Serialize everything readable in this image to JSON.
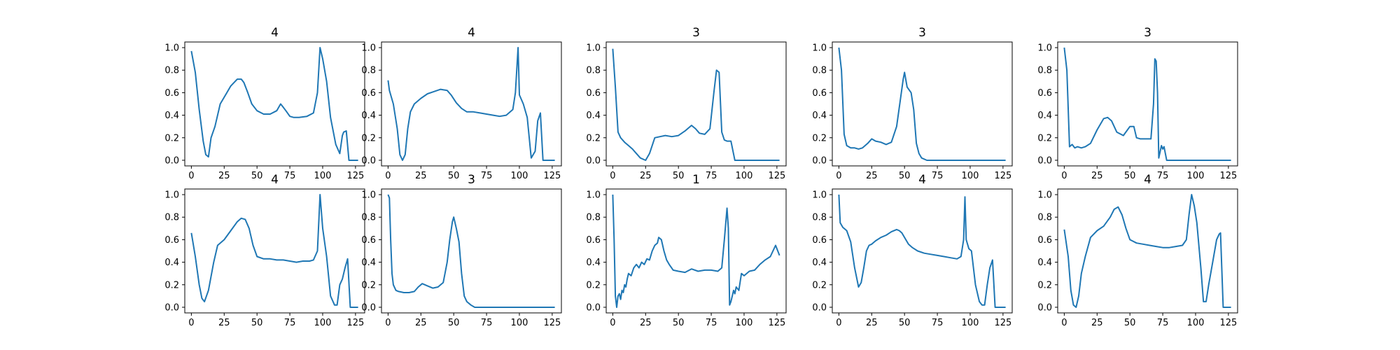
{
  "chart_data": [
    {
      "type": "line",
      "title": "4",
      "xlim": [
        -5,
        132
      ],
      "ylim": [
        -0.05,
        1.05
      ],
      "xticks": [
        "0",
        "25",
        "50",
        "75",
        "100",
        "125"
      ],
      "yticks": [
        "0.0",
        "0.2",
        "0.4",
        "0.6",
        "0.8",
        "1.0"
      ],
      "series": [
        {
          "color": "#1f77b4",
          "x": [
            0,
            3,
            6,
            9,
            11,
            13,
            15,
            18,
            22,
            26,
            30,
            35,
            38,
            40,
            43,
            46,
            50,
            55,
            60,
            65,
            68,
            70,
            72,
            75,
            78,
            82,
            88,
            93,
            96,
            98,
            100,
            103,
            106,
            110,
            113,
            115,
            116,
            118,
            120,
            122,
            125,
            127
          ],
          "y": [
            0.97,
            0.78,
            0.45,
            0.17,
            0.05,
            0.03,
            0.2,
            0.3,
            0.5,
            0.58,
            0.66,
            0.72,
            0.72,
            0.69,
            0.6,
            0.5,
            0.44,
            0.41,
            0.41,
            0.44,
            0.5,
            0.47,
            0.44,
            0.39,
            0.38,
            0.38,
            0.39,
            0.42,
            0.6,
            1.0,
            0.9,
            0.7,
            0.38,
            0.14,
            0.06,
            0.22,
            0.25,
            0.26,
            0.0,
            0.0,
            0.0,
            0.0
          ]
        }
      ]
    },
    {
      "type": "line",
      "title": "4",
      "xlim": [
        -5,
        132
      ],
      "ylim": [
        -0.05,
        1.05
      ],
      "xticks": [
        "0",
        "25",
        "50",
        "75",
        "100",
        "125"
      ],
      "yticks": [
        "0.0",
        "0.2",
        "0.4",
        "0.6",
        "0.8",
        "1.0"
      ],
      "series": [
        {
          "color": "#1f77b4",
          "x": [
            0,
            1,
            4,
            7,
            9,
            11,
            13,
            15,
            17,
            20,
            25,
            30,
            35,
            40,
            45,
            48,
            52,
            56,
            60,
            65,
            70,
            75,
            80,
            85,
            90,
            95,
            97,
            99,
            100,
            103,
            106,
            109,
            112,
            114,
            116,
            118,
            120,
            125,
            127
          ],
          "y": [
            0.71,
            0.62,
            0.5,
            0.28,
            0.05,
            0.0,
            0.05,
            0.28,
            0.43,
            0.5,
            0.55,
            0.59,
            0.61,
            0.63,
            0.62,
            0.58,
            0.51,
            0.46,
            0.43,
            0.43,
            0.42,
            0.41,
            0.4,
            0.39,
            0.4,
            0.45,
            0.6,
            1.0,
            0.58,
            0.5,
            0.38,
            0.02,
            0.08,
            0.35,
            0.42,
            0.0,
            0.0,
            0.0,
            0.0
          ]
        }
      ]
    },
    {
      "type": "line",
      "title": "3",
      "xlim": [
        -5,
        132
      ],
      "ylim": [
        -0.05,
        1.05
      ],
      "xticks": [
        "0",
        "25",
        "50",
        "75",
        "100",
        "125"
      ],
      "yticks": [
        "0.0",
        "0.2",
        "0.4",
        "0.6",
        "0.8",
        "1.0"
      ],
      "series": [
        {
          "color": "#1f77b4",
          "x": [
            0,
            2,
            4,
            6,
            9,
            12,
            15,
            18,
            21,
            25,
            28,
            32,
            36,
            40,
            45,
            50,
            55,
            60,
            63,
            66,
            70,
            74,
            77,
            79,
            81,
            83,
            85,
            87,
            90,
            93,
            96,
            100,
            105,
            110,
            115,
            120,
            125,
            127
          ],
          "y": [
            0.99,
            0.65,
            0.25,
            0.2,
            0.16,
            0.13,
            0.1,
            0.06,
            0.02,
            0.0,
            0.06,
            0.2,
            0.21,
            0.22,
            0.21,
            0.22,
            0.26,
            0.31,
            0.28,
            0.24,
            0.23,
            0.28,
            0.6,
            0.8,
            0.78,
            0.25,
            0.18,
            0.17,
            0.17,
            0.0,
            0.0,
            0.0,
            0.0,
            0.0,
            0.0,
            0.0,
            0.0,
            0.0
          ]
        }
      ]
    },
    {
      "type": "line",
      "title": "3",
      "xlim": [
        -5,
        132
      ],
      "ylim": [
        -0.05,
        1.05
      ],
      "xticks": [
        "0",
        "25",
        "50",
        "75",
        "100",
        "125"
      ],
      "yticks": [
        "0.0",
        "0.2",
        "0.4",
        "0.6",
        "0.8",
        "1.0"
      ],
      "series": [
        {
          "color": "#1f77b4",
          "x": [
            0,
            2,
            4,
            6,
            9,
            12,
            15,
            18,
            22,
            25,
            28,
            32,
            36,
            40,
            44,
            47,
            49,
            50,
            52,
            55,
            57,
            59,
            61,
            63,
            67,
            70,
            75,
            80,
            90,
            100,
            110,
            120,
            125,
            127
          ],
          "y": [
            1.0,
            0.8,
            0.23,
            0.13,
            0.11,
            0.11,
            0.1,
            0.11,
            0.15,
            0.19,
            0.17,
            0.16,
            0.14,
            0.16,
            0.3,
            0.55,
            0.72,
            0.78,
            0.65,
            0.6,
            0.45,
            0.15,
            0.06,
            0.02,
            0.0,
            0.0,
            0.0,
            0.0,
            0.0,
            0.0,
            0.0,
            0.0,
            0.0,
            0.0
          ]
        }
      ]
    },
    {
      "type": "line",
      "title": "3",
      "xlim": [
        -5,
        132
      ],
      "ylim": [
        -0.05,
        1.05
      ],
      "xticks": [
        "0",
        "25",
        "50",
        "75",
        "100",
        "125"
      ],
      "yticks": [
        "0.0",
        "0.2",
        "0.4",
        "0.6",
        "0.8",
        "1.0"
      ],
      "series": [
        {
          "color": "#1f77b4",
          "x": [
            0,
            2,
            4,
            6,
            8,
            10,
            13,
            16,
            20,
            25,
            30,
            33,
            36,
            40,
            45,
            50,
            53,
            55,
            58,
            62,
            66,
            68,
            69,
            70,
            71,
            72,
            74,
            75,
            76,
            78,
            80,
            85,
            90,
            100,
            110,
            120,
            125,
            127
          ],
          "y": [
            1.0,
            0.8,
            0.12,
            0.14,
            0.11,
            0.12,
            0.11,
            0.12,
            0.15,
            0.27,
            0.37,
            0.38,
            0.35,
            0.25,
            0.22,
            0.3,
            0.3,
            0.2,
            0.19,
            0.19,
            0.19,
            0.5,
            0.9,
            0.88,
            0.6,
            0.02,
            0.13,
            0.1,
            0.12,
            0.0,
            0.0,
            0.0,
            0.0,
            0.0,
            0.0,
            0.0,
            0.0,
            0.0
          ]
        }
      ]
    },
    {
      "type": "line",
      "title": "4",
      "xlim": [
        -5,
        132
      ],
      "ylim": [
        -0.05,
        1.05
      ],
      "xticks": [
        "0",
        "25",
        "50",
        "75",
        "100",
        "125"
      ],
      "yticks": [
        "0.0",
        "0.2",
        "0.4",
        "0.6",
        "0.8",
        "1.0"
      ],
      "series": [
        {
          "color": "#1f77b4",
          "x": [
            0,
            3,
            6,
            8,
            10,
            13,
            17,
            20,
            25,
            30,
            35,
            38,
            41,
            44,
            47,
            50,
            55,
            60,
            65,
            70,
            75,
            80,
            85,
            90,
            93,
            96,
            98,
            100,
            103,
            106,
            109,
            111,
            113,
            115,
            117,
            119,
            121,
            122,
            124,
            127
          ],
          "y": [
            0.66,
            0.45,
            0.2,
            0.08,
            0.05,
            0.15,
            0.4,
            0.55,
            0.6,
            0.68,
            0.76,
            0.79,
            0.78,
            0.7,
            0.55,
            0.45,
            0.43,
            0.43,
            0.42,
            0.42,
            0.41,
            0.4,
            0.41,
            0.41,
            0.42,
            0.5,
            1.0,
            0.7,
            0.45,
            0.1,
            0.02,
            0.02,
            0.2,
            0.25,
            0.35,
            0.43,
            0.0,
            0.0,
            0.0,
            0.0
          ]
        }
      ]
    },
    {
      "type": "line",
      "title": "3",
      "xlim": [
        -5,
        132
      ],
      "ylim": [
        -0.05,
        1.05
      ],
      "xticks": [
        "0",
        "25",
        "50",
        "75",
        "100",
        "125"
      ],
      "yticks": [
        "0.0",
        "0.2",
        "0.4",
        "0.6",
        "0.8",
        "1.0"
      ],
      "series": [
        {
          "color": "#1f77b4",
          "x": [
            0,
            1,
            2,
            3,
            4,
            6,
            8,
            12,
            16,
            20,
            23,
            26,
            30,
            34,
            38,
            42,
            45,
            47,
            49,
            50,
            52,
            54,
            56,
            58,
            60,
            63,
            66,
            70,
            75,
            80,
            90,
            100,
            110,
            120,
            125,
            127
          ],
          "y": [
            1.0,
            0.97,
            0.6,
            0.3,
            0.2,
            0.15,
            0.14,
            0.13,
            0.13,
            0.14,
            0.18,
            0.21,
            0.19,
            0.17,
            0.18,
            0.22,
            0.4,
            0.6,
            0.76,
            0.8,
            0.7,
            0.58,
            0.3,
            0.1,
            0.05,
            0.02,
            0.0,
            0.0,
            0.0,
            0.0,
            0.0,
            0.0,
            0.0,
            0.0,
            0.0,
            0.0
          ]
        }
      ]
    },
    {
      "type": "line",
      "title": "1",
      "xlim": [
        -5,
        132
      ],
      "ylim": [
        -0.05,
        1.05
      ],
      "xticks": [
        "0",
        "25",
        "50",
        "75",
        "100",
        "125"
      ],
      "yticks": [
        "0.0",
        "0.2",
        "0.4",
        "0.6",
        "0.8",
        "1.0"
      ],
      "series": [
        {
          "color": "#1f77b4",
          "x": [
            0,
            1,
            2,
            3,
            4,
            5,
            6,
            7,
            8,
            9,
            10,
            11,
            12,
            14,
            16,
            18,
            20,
            22,
            24,
            26,
            28,
            30,
            32,
            34,
            35,
            37,
            39,
            41,
            43,
            46,
            50,
            55,
            60,
            65,
            70,
            75,
            80,
            83,
            85,
            87,
            88,
            89,
            90,
            91,
            92,
            93,
            94,
            96,
            98,
            100,
            104,
            108,
            112,
            116,
            120,
            124,
            127
          ],
          "y": [
            1.0,
            0.6,
            0.1,
            0.0,
            0.1,
            0.12,
            0.07,
            0.15,
            0.13,
            0.2,
            0.18,
            0.25,
            0.3,
            0.28,
            0.35,
            0.38,
            0.35,
            0.4,
            0.38,
            0.43,
            0.42,
            0.5,
            0.55,
            0.57,
            0.62,
            0.6,
            0.5,
            0.42,
            0.38,
            0.33,
            0.32,
            0.31,
            0.34,
            0.32,
            0.33,
            0.33,
            0.32,
            0.35,
            0.6,
            0.88,
            0.7,
            0.02,
            0.05,
            0.1,
            0.15,
            0.12,
            0.18,
            0.15,
            0.3,
            0.28,
            0.32,
            0.33,
            0.38,
            0.42,
            0.45,
            0.55,
            0.46
          ]
        }
      ]
    },
    {
      "type": "line",
      "title": "4",
      "xlim": [
        -5,
        132
      ],
      "ylim": [
        -0.05,
        1.05
      ],
      "xticks": [
        "0",
        "25",
        "50",
        "75",
        "100",
        "125"
      ],
      "yticks": [
        "0.0",
        "0.2",
        "0.4",
        "0.6",
        "0.8",
        "1.0"
      ],
      "series": [
        {
          "color": "#1f77b4",
          "x": [
            0,
            1,
            3,
            6,
            9,
            12,
            15,
            17,
            19,
            21,
            23,
            25,
            28,
            32,
            36,
            40,
            44,
            46,
            48,
            50,
            53,
            56,
            60,
            65,
            70,
            75,
            80,
            85,
            90,
            93,
            95,
            96,
            97,
            99,
            101,
            104,
            107,
            109,
            111,
            113,
            115,
            117,
            119,
            121,
            124,
            127
          ],
          "y": [
            1.0,
            0.75,
            0.71,
            0.68,
            0.58,
            0.35,
            0.18,
            0.22,
            0.35,
            0.5,
            0.55,
            0.56,
            0.59,
            0.62,
            0.64,
            0.67,
            0.69,
            0.68,
            0.66,
            0.62,
            0.56,
            0.53,
            0.5,
            0.48,
            0.47,
            0.46,
            0.45,
            0.44,
            0.43,
            0.45,
            0.6,
            0.98,
            0.6,
            0.52,
            0.5,
            0.2,
            0.05,
            0.02,
            0.02,
            0.2,
            0.35,
            0.42,
            0.0,
            0.0,
            0.0,
            0.0
          ]
        }
      ]
    },
    {
      "type": "line",
      "title": "4",
      "xlim": [
        -5,
        132
      ],
      "ylim": [
        -0.05,
        1.05
      ],
      "xticks": [
        "0",
        "25",
        "50",
        "75",
        "100",
        "125"
      ],
      "yticks": [
        "0.0",
        "0.2",
        "0.4",
        "0.6",
        "0.8",
        "1.0"
      ],
      "series": [
        {
          "color": "#1f77b4",
          "x": [
            0,
            3,
            5,
            7,
            9,
            11,
            13,
            16,
            20,
            25,
            30,
            35,
            38,
            41,
            44,
            47,
            50,
            55,
            60,
            65,
            70,
            75,
            80,
            85,
            90,
            93,
            95,
            97,
            99,
            101,
            104,
            106,
            108,
            110,
            113,
            116,
            118,
            119,
            121,
            124,
            127
          ],
          "y": [
            0.69,
            0.45,
            0.15,
            0.02,
            0.0,
            0.1,
            0.3,
            0.45,
            0.62,
            0.68,
            0.72,
            0.8,
            0.87,
            0.89,
            0.82,
            0.7,
            0.6,
            0.57,
            0.56,
            0.55,
            0.54,
            0.53,
            0.53,
            0.54,
            0.55,
            0.6,
            0.82,
            1.0,
            0.9,
            0.75,
            0.35,
            0.05,
            0.05,
            0.2,
            0.4,
            0.6,
            0.65,
            0.66,
            0.0,
            0.0,
            0.0
          ]
        }
      ]
    }
  ]
}
